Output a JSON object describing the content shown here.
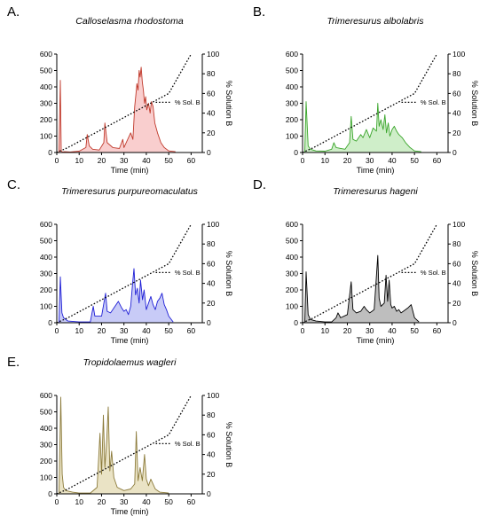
{
  "figure": {
    "x_axis_label": "Time (min)",
    "y2_axis_label": "% Solution B",
    "legend_label": "% Sol. B",
    "y_ticks": [
      0,
      100,
      200,
      300,
      400,
      500,
      600
    ],
    "y2_ticks": [
      0,
      20,
      40,
      60,
      80,
      100
    ],
    "x_ticks": [
      0,
      10,
      20,
      30,
      40,
      50,
      60
    ]
  },
  "chart_data": [
    {
      "type": "line",
      "panel": "A.",
      "title": "Calloselasma rhodostoma",
      "xlabel": "Time (min)",
      "ylabel": "",
      "y2label": "% Solution B",
      "xlim": [
        0,
        65
      ],
      "ylim": [
        0,
        600
      ],
      "y2lim": [
        0,
        100
      ],
      "colors": {
        "trace": "#c0392b",
        "fill": "#f4a6a6",
        "gradient": "#000000"
      },
      "series": [
        {
          "name": "",
          "x": [
            0,
            1,
            1.6,
            2,
            2.6,
            3.5,
            6,
            10,
            13,
            13.6,
            14.5,
            16,
            19,
            21,
            21.5,
            22.5,
            25,
            28,
            29.5,
            30,
            31,
            33,
            34,
            34.8,
            35.3,
            35.8,
            36.3,
            36.8,
            37.2,
            37.7,
            38.2,
            38.7,
            39.2,
            39.7,
            40.2,
            41,
            41.7,
            42.3,
            43,
            43.8,
            45,
            46.5,
            48,
            50,
            53
          ],
          "y": [
            0,
            0,
            440,
            10,
            2,
            5,
            3,
            8,
            30,
            110,
            40,
            20,
            15,
            60,
            180,
            60,
            30,
            25,
            80,
            30,
            60,
            120,
            80,
            280,
            350,
            420,
            380,
            500,
            460,
            520,
            430,
            380,
            300,
            340,
            260,
            300,
            240,
            310,
            280,
            180,
            120,
            60,
            30,
            10,
            5
          ]
        },
        {
          "name": "% Sol. B",
          "x": [
            0,
            5,
            50,
            60
          ],
          "y": [
            0,
            5,
            60,
            100
          ]
        }
      ]
    },
    {
      "type": "line",
      "panel": "B.",
      "title": "Trimeresurus albolabris",
      "xlabel": "Time (min)",
      "ylabel": "",
      "y2label": "% Solution B",
      "xlim": [
        0,
        65
      ],
      "ylim": [
        0,
        600
      ],
      "y2lim": [
        0,
        100
      ],
      "colors": {
        "trace": "#3aa52b",
        "fill": "#a8e09d",
        "gradient": "#000000"
      },
      "series": [
        {
          "name": "",
          "x": [
            0,
            1,
            1.6,
            2.5,
            3.5,
            6,
            10,
            13,
            14,
            15,
            17,
            19,
            21,
            21.7,
            22.5,
            24,
            26,
            27,
            28.5,
            30,
            31.5,
            33,
            33.6,
            34.2,
            35,
            36,
            36.8,
            37.5,
            38.3,
            39,
            40,
            41,
            42,
            43,
            44.5,
            46,
            48,
            50,
            53
          ],
          "y": [
            0,
            0,
            310,
            40,
            20,
            10,
            8,
            20,
            60,
            30,
            25,
            20,
            60,
            220,
            80,
            70,
            110,
            90,
            140,
            90,
            150,
            130,
            300,
            160,
            200,
            140,
            230,
            120,
            180,
            100,
            140,
            160,
            130,
            110,
            90,
            60,
            30,
            10,
            5
          ]
        },
        {
          "name": "% Sol. B",
          "x": [
            0,
            5,
            50,
            60
          ],
          "y": [
            0,
            5,
            60,
            100
          ]
        }
      ]
    },
    {
      "type": "line",
      "panel": "C.",
      "title": "Trimeresurus purpureomaculatus",
      "xlabel": "Time (min)",
      "ylabel": "",
      "y2label": "% Solution B",
      "xlim": [
        0,
        65
      ],
      "ylim": [
        0,
        600
      ],
      "y2lim": [
        0,
        100
      ],
      "colors": {
        "trace": "#1f1fd6",
        "fill": "#9aa0f0",
        "gradient": "#000000"
      },
      "series": [
        {
          "name": "",
          "x": [
            0,
            1,
            1.6,
            2.3,
            3,
            5,
            10,
            15,
            16.3,
            17,
            20,
            21.8,
            22.5,
            24,
            26,
            27.5,
            29,
            30,
            31,
            32,
            33,
            33.8,
            34.5,
            35.2,
            36,
            36.8,
            37.4,
            38.3,
            39,
            40,
            41,
            42,
            43,
            44,
            45,
            46,
            47,
            48,
            49,
            50,
            52
          ],
          "y": [
            0,
            0,
            280,
            60,
            30,
            10,
            5,
            5,
            100,
            40,
            40,
            180,
            70,
            60,
            100,
            130,
            90,
            70,
            80,
            50,
            100,
            230,
            330,
            170,
            210,
            120,
            260,
            140,
            200,
            80,
            120,
            160,
            110,
            80,
            130,
            150,
            180,
            110,
            80,
            40,
            5
          ]
        },
        {
          "name": "% Sol. B",
          "x": [
            0,
            5,
            50,
            60
          ],
          "y": [
            0,
            5,
            60,
            100
          ]
        }
      ]
    },
    {
      "type": "line",
      "panel": "D.",
      "title": "Trimeresurus hageni",
      "xlabel": "Time (min)",
      "ylabel": "",
      "y2label": "% Solution B",
      "xlim": [
        0,
        65
      ],
      "ylim": [
        0,
        600
      ],
      "y2lim": [
        0,
        100
      ],
      "colors": {
        "trace": "#000000",
        "fill": "#888888",
        "gradient": "#000000"
      },
      "series": [
        {
          "name": "",
          "x": [
            0,
            1,
            1.6,
            2.5,
            3.5,
            6,
            10,
            13,
            15,
            15.8,
            17,
            20,
            21.7,
            22.5,
            24,
            26,
            27.5,
            28.5,
            30,
            31,
            32,
            33.6,
            34.2,
            35,
            36.5,
            37.3,
            38,
            38.7,
            39.4,
            40,
            41,
            42,
            43,
            44,
            45,
            47,
            48.5,
            50,
            52
          ],
          "y": [
            0,
            0,
            310,
            50,
            20,
            10,
            5,
            5,
            30,
            60,
            30,
            50,
            250,
            80,
            60,
            70,
            100,
            80,
            60,
            70,
            80,
            410,
            150,
            100,
            120,
            290,
            130,
            260,
            110,
            90,
            100,
            70,
            80,
            60,
            70,
            90,
            110,
            30,
            5
          ]
        },
        {
          "name": "% Sol. B",
          "x": [
            0,
            5,
            50,
            60
          ],
          "y": [
            0,
            5,
            60,
            100
          ]
        }
      ]
    },
    {
      "type": "line",
      "panel": "E.",
      "title": "Tropidolaemus wagleri",
      "xlabel": "Time (min)",
      "ylabel": "",
      "y2label": "% Solution B",
      "xlim": [
        0,
        65
      ],
      "ylim": [
        0,
        600
      ],
      "y2lim": [
        0,
        100
      ],
      "colors": {
        "trace": "#8b7a3a",
        "fill": "#d9cc96",
        "gradient": "#000000"
      },
      "series": [
        {
          "name": "",
          "x": [
            0,
            1,
            1.8,
            2.4,
            3,
            4,
            7,
            10,
            15,
            18,
            19.3,
            20,
            20.8,
            21.5,
            22.3,
            23,
            23.7,
            24.5,
            25.5,
            27,
            30,
            33,
            34.8,
            35.5,
            36.3,
            37.2,
            38.2,
            39.2,
            40,
            41,
            42,
            44,
            46,
            50
          ],
          "y": [
            0,
            0,
            590,
            120,
            40,
            20,
            10,
            5,
            5,
            40,
            370,
            120,
            480,
            160,
            330,
            530,
            140,
            260,
            100,
            40,
            20,
            30,
            60,
            380,
            80,
            160,
            80,
            240,
            90,
            50,
            90,
            30,
            10,
            5
          ]
        },
        {
          "name": "% Sol. B",
          "x": [
            0,
            5,
            50,
            60
          ],
          "y": [
            0,
            5,
            60,
            100
          ]
        }
      ]
    }
  ]
}
